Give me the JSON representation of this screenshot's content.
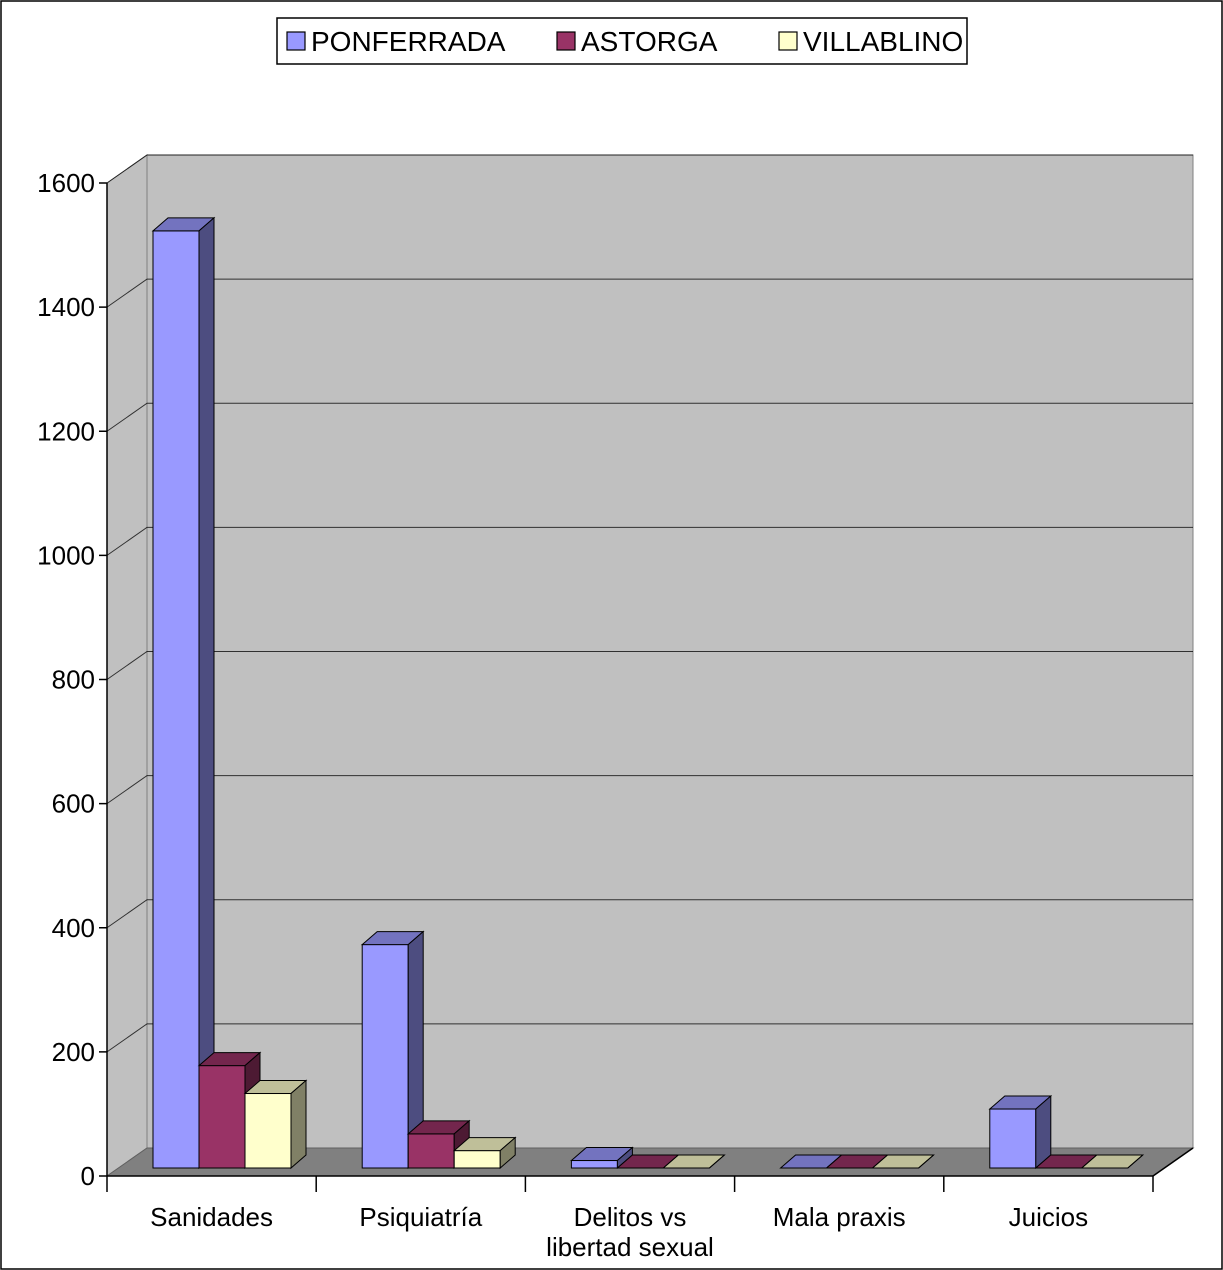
{
  "chart_data": {
    "type": "bar",
    "categories": [
      "Sanidades",
      "Psiquiatría",
      "Delitos vs libertad sexual",
      "Mala praxis",
      "Juicios"
    ],
    "category_lines": [
      [
        "Sanidades"
      ],
      [
        "Psiquiatría"
      ],
      [
        "Delitos vs",
        "libertad sexual"
      ],
      [
        "Mala praxis"
      ],
      [
        "Juicios"
      ]
    ],
    "series": [
      {
        "name": "PONFERRADA",
        "values": [
          1510,
          360,
          12,
          0,
          95
        ],
        "color": "#9999ff"
      },
      {
        "name": "ASTORGA",
        "values": [
          165,
          55,
          0,
          0,
          0
        ],
        "color": "#993366"
      },
      {
        "name": "VILLABLINO",
        "values": [
          120,
          28,
          0,
          0,
          0
        ],
        "color": "#ffffcc"
      }
    ],
    "ylim": [
      0,
      1600
    ],
    "yticks": [
      0,
      200,
      400,
      600,
      800,
      1000,
      1200,
      1400,
      1600
    ],
    "grid": true,
    "legend_position": "top-center",
    "style": "3d-clustered-column",
    "wall_color": "#c0c0c0",
    "floor_color": "#808080",
    "title": "",
    "xlabel": "",
    "ylabel": ""
  }
}
